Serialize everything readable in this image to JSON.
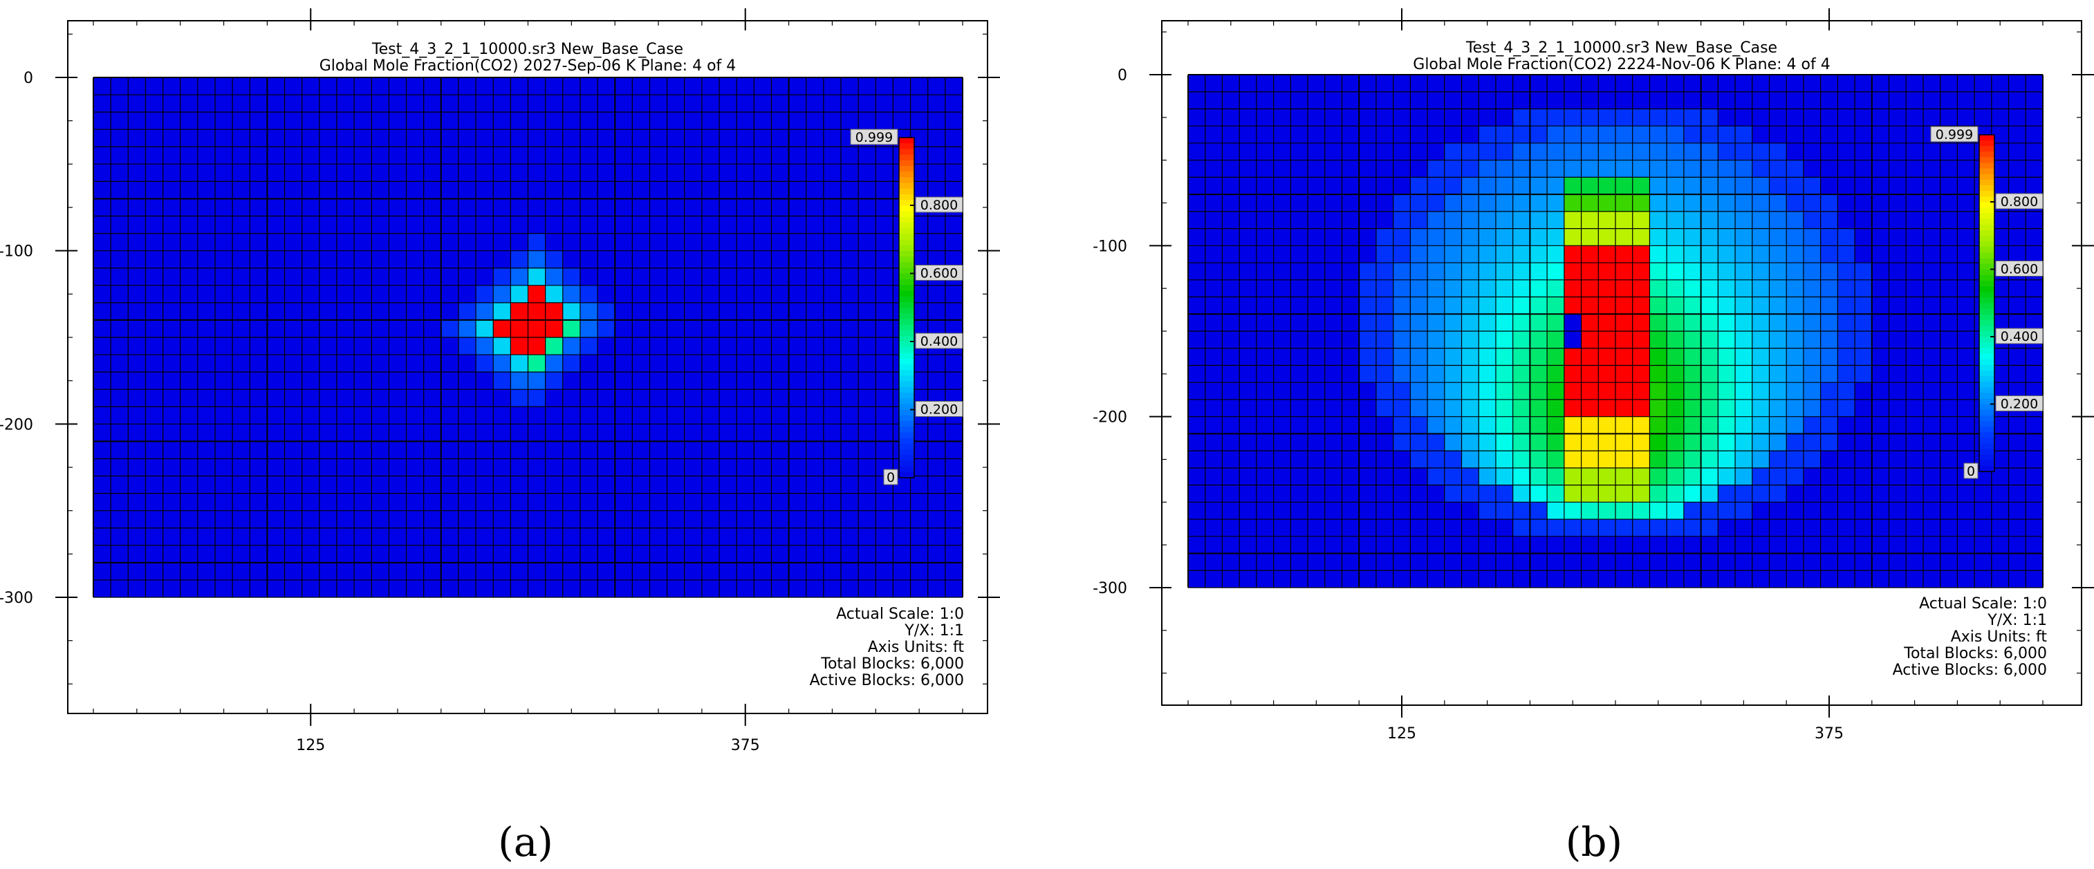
{
  "chart_data": [
    {
      "type": "heatmap",
      "panel_label": "(a)",
      "title_line1": "Test_4_3_2_1_10000.sr3 New_Base_Case",
      "title_line2": "Global Mole Fraction(CO2)  2027-Sep-06   K Plane: 4 of 4",
      "x_ticks": [
        125,
        375
      ],
      "y_ticks": [
        0,
        -100,
        -200,
        -300
      ],
      "xlim": [
        0,
        500
      ],
      "ylim": [
        -300,
        0
      ],
      "grid": {
        "cols": 50,
        "rows": 30
      },
      "colorbar": {
        "min": 0,
        "max": 0.999,
        "ticks": [
          0.2,
          0.4,
          0.6,
          0.8
        ],
        "tick_labels": [
          "0.200",
          "0.400",
          "0.600",
          "0.800"
        ],
        "min_label": "0",
        "max_label": "0.999"
      },
      "plume": {
        "shape": "diamond",
        "center_x": 252.5,
        "center_y": -142.5,
        "radius_blocks": 5,
        "max_value": 0.999,
        "core_radius_blocks": 2
      },
      "info": [
        "Actual Scale: 1:0",
        "Y/X: 1:1",
        "Axis Units: ft",
        "Total Blocks: 6,000",
        "Active Blocks: 6,000"
      ]
    },
    {
      "type": "heatmap",
      "panel_label": "(b)",
      "title_line1": "Test_4_3_2_1_10000.sr3 New_Base_Case",
      "title_line2": "Global Mole Fraction(CO2)  2224-Nov-06   K Plane: 4 of 4",
      "x_ticks": [
        125,
        375
      ],
      "y_ticks": [
        0,
        -100,
        -200,
        -300
      ],
      "xlim": [
        0,
        500
      ],
      "ylim": [
        -300,
        0
      ],
      "grid": {
        "cols": 50,
        "rows": 30
      },
      "colorbar": {
        "min": 0,
        "max": 0.999,
        "ticks": [
          0.2,
          0.4,
          0.6,
          0.8
        ],
        "tick_labels": [
          "0.200",
          "0.400",
          "0.600",
          "0.800"
        ],
        "min_label": "0",
        "max_label": "0.999"
      },
      "plume": {
        "shape": "disc",
        "center_x": 250,
        "center_y": -145,
        "radius_x": 150,
        "radius_y": 130,
        "max_value": 0.999,
        "core_x_range": [
          220,
          270
        ],
        "core_y_range": [
          -250,
          -60
        ]
      },
      "info": [
        "Actual Scale: 1:0",
        "Y/X: 1:1",
        "Axis Units: ft",
        "Total Blocks: 6,000",
        "Active Blocks: 6,000"
      ]
    }
  ]
}
